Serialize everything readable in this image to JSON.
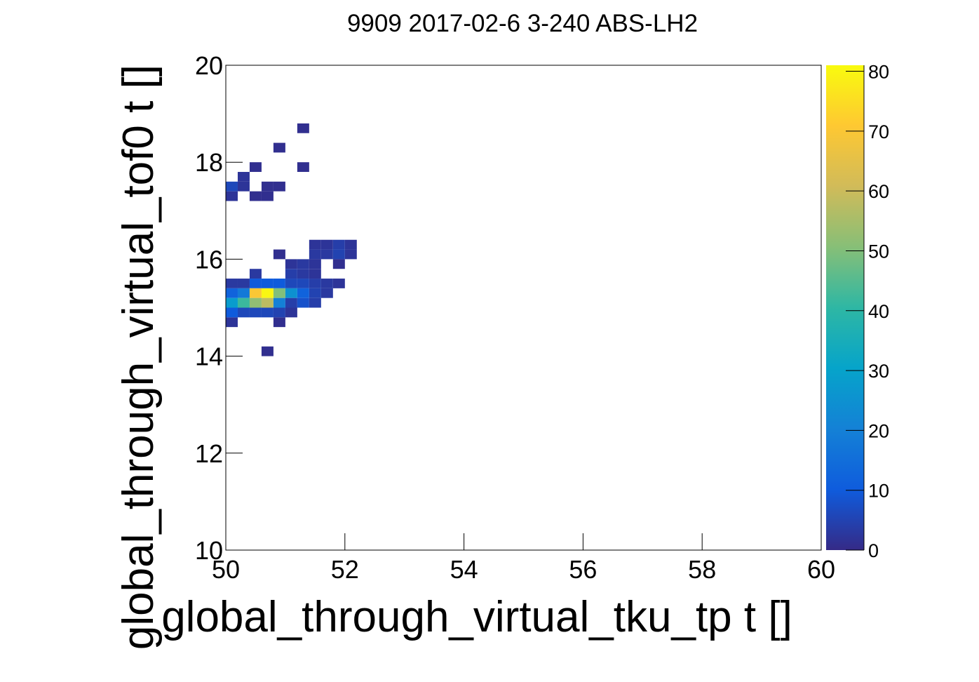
{
  "chart_data": {
    "type": "heatmap",
    "title": "9909 2017-02-6 3-240 ABS-LH2",
    "x_label": "global_through_virtual_tku_tp t []",
    "y_label": "global_through_virtual_tof0 t []",
    "xlim": [
      50,
      60
    ],
    "xticks": [
      50,
      52,
      54,
      56,
      58,
      60
    ],
    "ylim": [
      10,
      20
    ],
    "yticks": [
      10,
      12,
      14,
      16,
      18,
      20
    ],
    "zlim": [
      0,
      81
    ],
    "zticks": [
      0,
      10,
      20,
      30,
      40,
      50,
      60,
      70,
      80
    ],
    "xbins": [
      50,
      50.2,
      50.4,
      50.6,
      50.8,
      51,
      51.2,
      51.4,
      51.6,
      51.8,
      52,
      52.2,
      52.4,
      52.6,
      52.8,
      53,
      53.2,
      53.4,
      53.6,
      53.8,
      54,
      54.2,
      54.4,
      54.6,
      54.8,
      55,
      55.2,
      55.4,
      55.6,
      55.8,
      56,
      56.2,
      56.4,
      56.6,
      56.8,
      57,
      57.2,
      57.4,
      57.6,
      57.8,
      58,
      58.2,
      58.4,
      58.6,
      58.8,
      59,
      59.2,
      59.4,
      59.6,
      59.8,
      60
    ],
    "ybins": [
      10,
      10.2,
      10.4,
      10.6,
      10.8,
      11,
      11.2,
      11.4,
      11.6,
      11.8,
      12,
      12.2,
      12.4,
      12.6,
      12.8,
      13,
      13.2,
      13.4,
      13.6,
      13.8,
      14,
      14.2,
      14.4,
      14.6,
      14.8,
      15,
      15.2,
      15.4,
      15.6,
      15.8,
      16,
      16.2,
      16.4,
      16.6,
      16.8,
      17,
      17.2,
      17.4,
      17.6,
      17.8,
      18,
      18.2,
      18.4,
      18.6,
      18.8,
      19,
      19.2,
      19.4,
      19.6,
      19.8,
      20
    ],
    "colors": [
      "#352a87",
      "#0f5cdd",
      "#1481d6",
      "#06a4ca",
      "#2eb7a4",
      "#87bf77",
      "#d1bb59",
      "#fec832",
      "#f9fb0e"
    ],
    "cells": {
      "x": [
        51.2,
        50.8,
        50.4,
        51.2,
        50.2,
        50,
        50.2,
        50.6,
        50.8,
        50,
        50.4,
        50.6,
        51.4,
        51.6,
        51.8,
        52,
        50.8,
        51.4,
        51.6,
        51.8,
        52,
        51,
        51.2,
        51.4,
        51.8,
        50.4,
        51,
        51.2,
        51.4,
        50,
        50.2,
        50.4,
        50.6,
        50.8,
        51,
        51.2,
        51.4,
        51.6,
        51.8,
        50,
        50.2,
        50.4,
        50.6,
        50.8,
        51,
        51.2,
        51.4,
        51.6,
        50,
        50.2,
        50.4,
        50.6,
        50.8,
        51,
        51.2,
        51.4,
        50,
        50.2,
        50.4,
        50.6,
        50.8,
        51,
        50,
        50.8,
        50.6
      ],
      "y": [
        18.6,
        18.2,
        17.8,
        17.8,
        17.6,
        17.4,
        17.4,
        17.4,
        17.4,
        17.2,
        17.2,
        17.2,
        16.2,
        16.2,
        16.2,
        16.2,
        16,
        16,
        16,
        16,
        16,
        15.8,
        15.8,
        15.8,
        15.8,
        15.6,
        15.6,
        15.6,
        15.6,
        15.4,
        15.4,
        15.4,
        15.4,
        15.4,
        15.4,
        15.4,
        15.4,
        15.4,
        15.4,
        15.2,
        15.2,
        15.2,
        15.2,
        15.2,
        15.2,
        15.2,
        15.2,
        15.2,
        15,
        15,
        15,
        15,
        15,
        15,
        15,
        15,
        14.8,
        14.8,
        14.8,
        14.8,
        14.8,
        14.8,
        14.6,
        14.6,
        14
      ],
      "values": [
        1,
        1,
        1,
        1,
        2,
        6,
        2,
        1,
        1,
        2,
        1,
        1,
        2,
        2,
        4,
        2,
        1,
        3,
        3,
        5,
        2,
        2,
        3,
        2,
        1,
        3,
        4,
        3,
        2,
        3,
        3,
        10,
        10,
        10,
        6,
        6,
        4,
        3,
        2,
        12,
        18,
        70,
        80,
        50,
        25,
        12,
        5,
        3,
        28,
        42,
        52,
        58,
        20,
        4,
        8,
        4,
        10,
        6,
        6,
        6,
        5,
        2,
        2,
        1,
        1
      ]
    }
  }
}
